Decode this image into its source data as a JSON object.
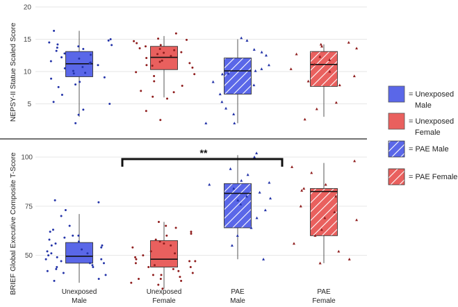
{
  "chart_data": [
    {
      "type": "box",
      "ylabel": "NEPSY-II Statue Scaled Score",
      "ylim": [
        0,
        20
      ],
      "yticks": [
        5,
        10,
        15,
        20
      ],
      "groups": [
        {
          "name": "Unexposed Male",
          "color": "#5a67e8",
          "hatch": false,
          "q1": 9.2,
          "median": 11.2,
          "q3": 13.1,
          "whisker_low": 3,
          "whisker_high": 16.3,
          "points": [
            3.3,
            4.1,
            5.3,
            6.4,
            8.0,
            8.4,
            8.9,
            9.1,
            9.8,
            10.1,
            10.5,
            11.0,
            11.3,
            11.6,
            12.0,
            12.2,
            12.6,
            13.2,
            13.5,
            13.9,
            14.2,
            14.5,
            14.8,
            15.0,
            16.3,
            2.0,
            5.0,
            7.6,
            9.7,
            10.7,
            11.4,
            12.8,
            13.7,
            14.1
          ]
        },
        {
          "name": "Unexposed Female",
          "color": "#e9605e",
          "hatch": false,
          "q1": 10.3,
          "median": 12.2,
          "q3": 13.9,
          "whisker_low": 6,
          "whisker_high": 15.5,
          "points": [
            2.5,
            3.9,
            5.8,
            6.1,
            7.0,
            7.8,
            8.5,
            9.3,
            9.9,
            10.6,
            11.0,
            11.3,
            11.7,
            12.1,
            12.4,
            12.7,
            13.0,
            13.3,
            13.6,
            13.9,
            14.1,
            14.4,
            14.7,
            15.1,
            15.9,
            6.8,
            9.6,
            10.9,
            11.5,
            12.9,
            13.5,
            14.9
          ]
        },
        {
          "name": "PAE Male",
          "color": "#5a67e8",
          "hatch": true,
          "q1": 6.5,
          "median": 10.1,
          "q3": 12.1,
          "whisker_low": 2,
          "whisker_high": 15,
          "points": [
            2.0,
            3.4,
            5.3,
            6.5,
            7.9,
            8.4,
            9.6,
            10.1,
            10.4,
            11.0,
            12.5,
            13.0,
            13.4,
            14.8,
            15.2,
            2.0,
            4.3,
            9.7
          ]
        },
        {
          "name": "PAE Female",
          "color": "#e9605e",
          "hatch": true,
          "q1": 7.7,
          "median": 11.1,
          "q3": 13.1,
          "whisker_low": 3,
          "whisker_high": 14.2,
          "points": [
            2.6,
            4.2,
            5.2,
            7.9,
            8.5,
            9.3,
            10.4,
            11.1,
            11.8,
            12.3,
            12.7,
            13.6,
            14.2,
            14.5,
            10.0,
            13.9
          ]
        }
      ]
    },
    {
      "type": "box",
      "ylabel": "BRIEF Global Executive Composite T-Score",
      "ylim": [
        35,
        105
      ],
      "yticks": [
        50,
        75,
        100
      ],
      "groups": [
        {
          "name": "Unexposed Male",
          "color": "#5a67e8",
          "hatch": false,
          "q1": 46,
          "median": 49.5,
          "q3": 56.5,
          "whisker_low": 36,
          "whisker_high": 71,
          "points": [
            37,
            38,
            40,
            41,
            42,
            43,
            44,
            45,
            46,
            46,
            47,
            48,
            49,
            50,
            51,
            52,
            53,
            54,
            55,
            56,
            57,
            58,
            59,
            60,
            62,
            65,
            70,
            73,
            77,
            78,
            44,
            48,
            51,
            55,
            60,
            63
          ]
        },
        {
          "name": "Unexposed Female",
          "color": "#e9605e",
          "hatch": false,
          "q1": 44,
          "median": 48,
          "q3": 57.5,
          "whisker_low": 33,
          "whisker_high": 67,
          "points": [
            33,
            35,
            36,
            37,
            38,
            39,
            40,
            41,
            42,
            43,
            44,
            45,
            46,
            47,
            48,
            49,
            50,
            52,
            54,
            55,
            57,
            58,
            60,
            62,
            65,
            67,
            38,
            44,
            51,
            56,
            61,
            64,
            40,
            47
          ]
        },
        {
          "name": "PAE Male",
          "color": "#5a67e8",
          "hatch": true,
          "q1": 64,
          "median": 81.5,
          "q3": 86.5,
          "whisker_low": 48,
          "whisker_high": 101,
          "points": [
            48,
            55,
            60,
            64,
            69,
            73,
            76,
            79,
            80,
            82,
            84,
            86,
            87,
            88,
            91,
            94,
            100,
            102,
            78
          ]
        },
        {
          "name": "PAE Female",
          "color": "#e9605e",
          "hatch": true,
          "q1": 60,
          "median": 82.5,
          "q3": 84,
          "whisker_low": 46,
          "whisker_high": 97,
          "points": [
            46,
            48,
            52,
            56,
            60,
            63,
            68,
            72,
            75,
            80,
            83,
            84,
            86,
            92,
            95,
            98,
            69
          ]
        }
      ]
    }
  ],
  "x_categories": [
    {
      "line1": "Unexposed",
      "line2": "Male"
    },
    {
      "line1": "Unexposed",
      "line2": "Female"
    },
    {
      "line1": "PAE",
      "line2": "Male"
    },
    {
      "line1": "PAE",
      "line2": "Female"
    }
  ],
  "significance": {
    "label": "**",
    "from": "Unexposed Female",
    "to": "PAE Male"
  },
  "legend": [
    {
      "line1": "= Unexposed",
      "line2": "Male",
      "color": "#5a67e8",
      "hatch": false
    },
    {
      "line1": "= Unexposed",
      "line2": "Female",
      "color": "#e9605e",
      "hatch": false
    },
    {
      "line1": "= PAE Male",
      "line2": "",
      "color": "#5a67e8",
      "hatch": true
    },
    {
      "line1": "= PAE Female",
      "line2": "",
      "color": "#e9605e",
      "hatch": true
    }
  ],
  "colors": {
    "male_point": "#2333a8",
    "female_point": "#8f1d1d",
    "grid": "#e6e6e6",
    "divider": "#444444"
  }
}
